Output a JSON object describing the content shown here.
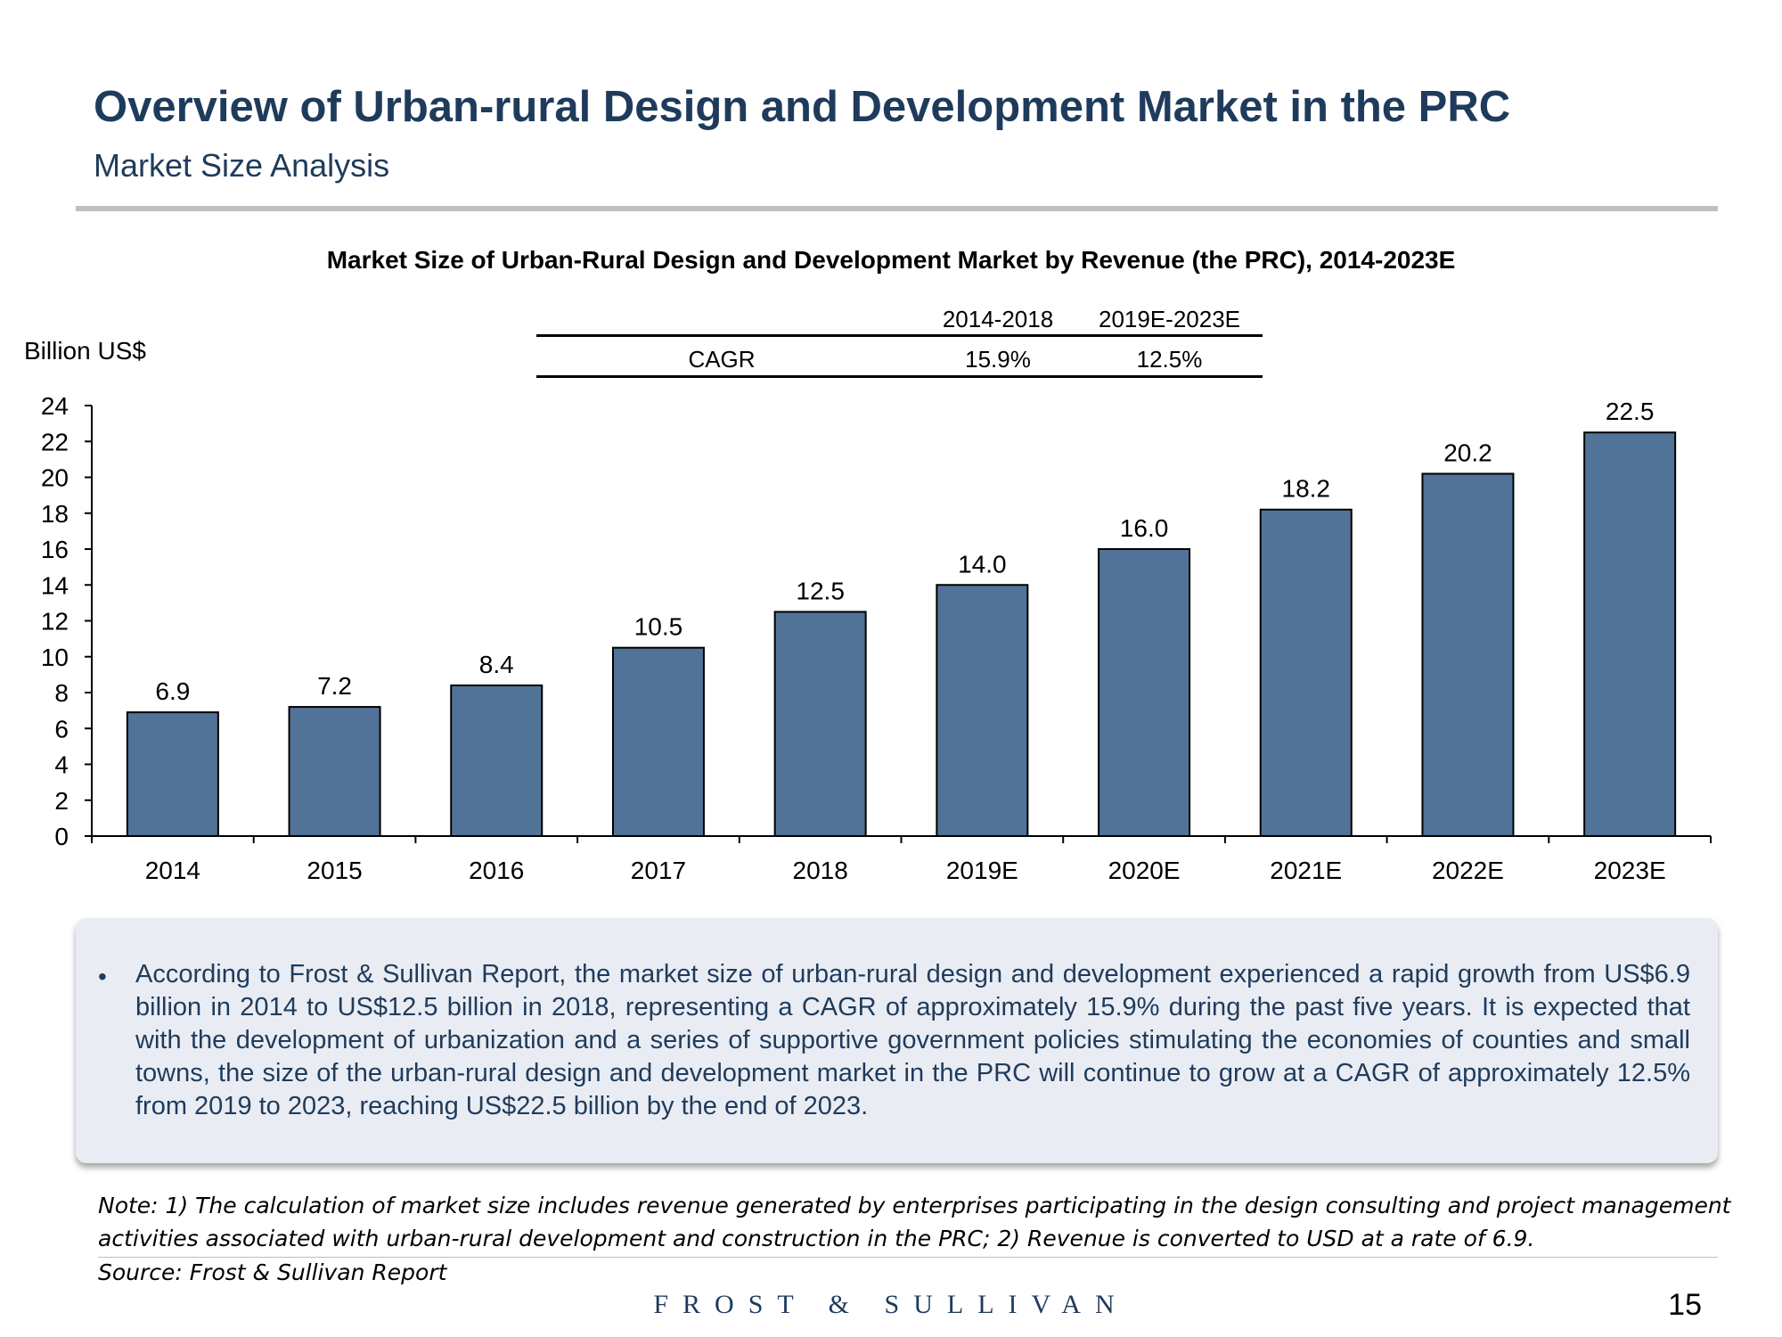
{
  "header": {
    "title": "Overview of Urban-rural Design and Development Market in the PRC",
    "subtitle": "Market Size Analysis"
  },
  "cagr_table": {
    "row_label": "CAGR",
    "periods": [
      "2014-2018",
      "2019E-2023E"
    ],
    "values": [
      "15.9%",
      "12.5%"
    ]
  },
  "chart_data": {
    "type": "bar",
    "title": "Market Size of Urban-Rural Design and Development Market by Revenue (the PRC), 2014-2023E",
    "ylabel": "Billion US$",
    "xlabel": "",
    "categories": [
      "2014",
      "2015",
      "2016",
      "2017",
      "2018",
      "2019E",
      "2020E",
      "2021E",
      "2022E",
      "2023E"
    ],
    "values": [
      6.9,
      7.2,
      8.4,
      10.5,
      12.5,
      14.0,
      16.0,
      18.2,
      20.2,
      22.5
    ],
    "data_labels": [
      "6.9",
      "7.2",
      "8.4",
      "10.5",
      "12.5",
      "14.0",
      "16.0",
      "18.2",
      "20.2",
      "22.5"
    ],
    "ylim": [
      0,
      24
    ],
    "yticks": [
      "0",
      "2",
      "4",
      "6",
      "8",
      "10",
      "12",
      "14",
      "16",
      "18",
      "20",
      "22",
      "24"
    ],
    "bar_color": "#527398",
    "grid": false,
    "legend": "none"
  },
  "commentary": {
    "bullet": "According to Frost & Sullivan Report, the market size of urban-rural design and development experienced a rapid growth from US$6.9 billion in 2014 to US$12.5 billion in 2018, representing a CAGR of approximately 15.9% during the past five years. It is expected that with the development of urbanization and a series of supportive government policies stimulating the economies of counties and small towns, the size of the urban-rural design and development market in the PRC will continue to grow at a CAGR of approximately 12.5% from 2019 to 2023, reaching US$22.5 billion by the end of 2023."
  },
  "footer": {
    "note_line1": "Note: 1) The calculation of market size includes revenue generated by enterprises participating in the design consulting and project management",
    "note_line2": "activities associated with urban-rural development and construction in the PRC; 2)  Revenue is converted to USD at a rate of 6.9.",
    "source": "Source: Frost & Sullivan Report",
    "logo": "FROST & SULLIVAN",
    "page_number": "15"
  },
  "colors": {
    "title": "#1f3b5c",
    "bar": "#527398",
    "box": "#e9edf3"
  }
}
